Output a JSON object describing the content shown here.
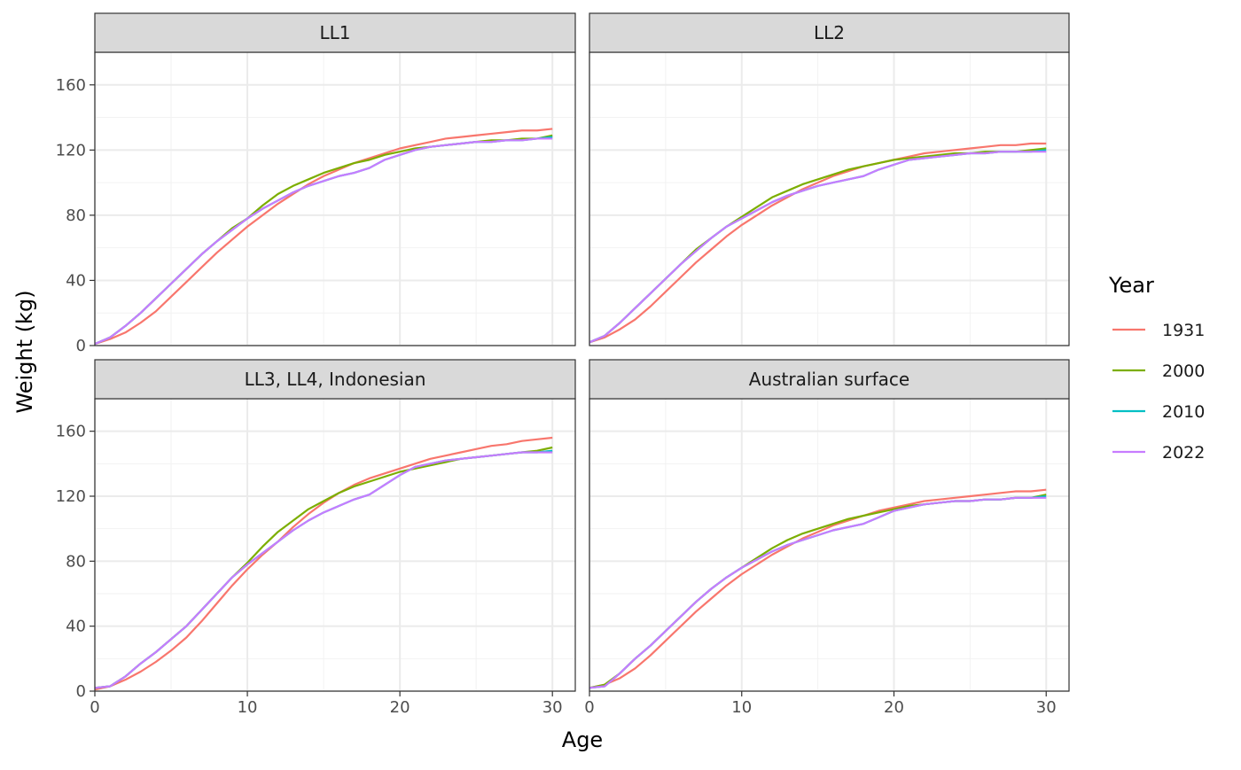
{
  "chart_data": {
    "type": "line",
    "layout": "facet-grid-2x2",
    "xlabel": "Age",
    "ylabel": "Weight (kg)",
    "xlim": [
      0,
      31.5
    ],
    "ylim": [
      0,
      180
    ],
    "x_ticks": [
      0,
      10,
      20,
      30
    ],
    "y_ticks": [
      0,
      40,
      80,
      120,
      160
    ],
    "grid": true,
    "legend": {
      "title": "Year",
      "placement": "right",
      "entries": [
        {
          "name": "1931",
          "color": "#F8766D"
        },
        {
          "name": "2000",
          "color": "#7CAE00"
        },
        {
          "name": "2010",
          "color": "#00BFC4"
        },
        {
          "name": "2022",
          "color": "#C77CFF"
        }
      ]
    },
    "x": [
      0,
      1,
      2,
      3,
      4,
      5,
      6,
      7,
      8,
      9,
      10,
      11,
      12,
      13,
      14,
      15,
      16,
      17,
      18,
      19,
      20,
      21,
      22,
      23,
      24,
      25,
      26,
      27,
      28,
      29,
      30
    ],
    "panels": [
      {
        "title": "LL1",
        "series": [
          {
            "name": "1931",
            "values": [
              1,
              4,
              8,
              14,
              21,
              30,
              39,
              48,
              57,
              65,
              73,
              80,
              87,
              93,
              99,
              104,
              108,
              112,
              115,
              118,
              121,
              123,
              125,
              127,
              128,
              129,
              130,
              131,
              132,
              132,
              133
            ]
          },
          {
            "name": "2000",
            "values": [
              1,
              5,
              12,
              20,
              29,
              38,
              47,
              56,
              64,
              72,
              78,
              86,
              93,
              98,
              102,
              106,
              109,
              112,
              114,
              117,
              119,
              121,
              122,
              123,
              124,
              125,
              126,
              126,
              127,
              127,
              129
            ]
          },
          {
            "name": "2010",
            "values": [
              1,
              5,
              12,
              20,
              29,
              38,
              47,
              56,
              64,
              71,
              78,
              84,
              89,
              94,
              98,
              101,
              104,
              106,
              109,
              114,
              117,
              120,
              122,
              123,
              124,
              125,
              125,
              126,
              126,
              127,
              128
            ]
          },
          {
            "name": "2022",
            "values": [
              1,
              5,
              12,
              20,
              29,
              38,
              47,
              56,
              64,
              71,
              78,
              84,
              89,
              94,
              98,
              101,
              104,
              106,
              109,
              114,
              117,
              120,
              122,
              123,
              124,
              125,
              125,
              126,
              126,
              127,
              127
            ]
          }
        ]
      },
      {
        "title": "LL2",
        "series": [
          {
            "name": "1931",
            "values": [
              2,
              5,
              10,
              16,
              24,
              33,
              42,
              51,
              59,
              67,
              74,
              80,
              86,
              91,
              96,
              100,
              104,
              107,
              110,
              112,
              114,
              116,
              118,
              119,
              120,
              121,
              122,
              123,
              123,
              124,
              124
            ]
          },
          {
            "name": "2000",
            "values": [
              2,
              6,
              14,
              23,
              32,
              41,
              50,
              59,
              66,
              73,
              79,
              85,
              91,
              95,
              99,
              102,
              105,
              108,
              110,
              112,
              114,
              115,
              116,
              117,
              118,
              118,
              119,
              119,
              119,
              120,
              121
            ]
          },
          {
            "name": "2010",
            "values": [
              2,
              6,
              14,
              23,
              32,
              41,
              50,
              58,
              66,
              73,
              78,
              83,
              88,
              92,
              95,
              98,
              100,
              102,
              104,
              108,
              111,
              114,
              115,
              116,
              117,
              118,
              118,
              119,
              119,
              119,
              120
            ]
          },
          {
            "name": "2022",
            "values": [
              2,
              6,
              14,
              23,
              32,
              41,
              50,
              58,
              66,
              73,
              78,
              83,
              88,
              92,
              95,
              98,
              100,
              102,
              104,
              108,
              111,
              114,
              115,
              116,
              117,
              118,
              118,
              119,
              119,
              119,
              119
            ]
          }
        ]
      },
      {
        "title": "LL3, LL4, Indonesian",
        "series": [
          {
            "name": "1931",
            "values": [
              1,
              3,
              7,
              12,
              18,
              25,
              33,
              43,
              54,
              65,
              75,
              84,
              92,
              101,
              109,
              116,
              122,
              127,
              131,
              134,
              137,
              140,
              143,
              145,
              147,
              149,
              151,
              152,
              154,
              155,
              156
            ]
          },
          {
            "name": "2000",
            "values": [
              2,
              3,
              9,
              17,
              24,
              32,
              40,
              50,
              60,
              70,
              79,
              89,
              98,
              105,
              112,
              117,
              122,
              126,
              129,
              132,
              135,
              137,
              139,
              141,
              143,
              144,
              145,
              146,
              147,
              148,
              150
            ]
          },
          {
            "name": "2010",
            "values": [
              2,
              3,
              9,
              17,
              24,
              32,
              40,
              50,
              60,
              70,
              78,
              85,
              92,
              99,
              105,
              110,
              114,
              118,
              121,
              127,
              133,
              138,
              140,
              142,
              143,
              144,
              145,
              146,
              147,
              147,
              148
            ]
          },
          {
            "name": "2022",
            "values": [
              2,
              3,
              9,
              17,
              24,
              32,
              40,
              50,
              60,
              70,
              78,
              85,
              92,
              99,
              105,
              110,
              114,
              118,
              121,
              127,
              133,
              138,
              140,
              142,
              143,
              144,
              145,
              146,
              147,
              147,
              147
            ]
          }
        ]
      },
      {
        "title": "Australian surface",
        "series": [
          {
            "name": "1931",
            "values": [
              2,
              4,
              8,
              14,
              22,
              31,
              40,
              49,
              57,
              65,
              72,
              78,
              84,
              89,
              94,
              98,
              102,
              105,
              108,
              111,
              113,
              115,
              117,
              118,
              119,
              120,
              121,
              122,
              123,
              123,
              124
            ]
          },
          {
            "name": "2000",
            "values": [
              2,
              4,
              11,
              20,
              28,
              37,
              46,
              55,
              63,
              70,
              76,
              82,
              88,
              93,
              97,
              100,
              103,
              106,
              108,
              110,
              112,
              114,
              115,
              116,
              117,
              117,
              118,
              118,
              119,
              119,
              121
            ]
          },
          {
            "name": "2010",
            "values": [
              2,
              3,
              11,
              20,
              28,
              37,
              46,
              55,
              63,
              70,
              76,
              81,
              86,
              90,
              93,
              96,
              99,
              101,
              103,
              107,
              111,
              113,
              115,
              116,
              117,
              117,
              118,
              118,
              119,
              119,
              120
            ]
          },
          {
            "name": "2022",
            "values": [
              2,
              3,
              11,
              20,
              28,
              37,
              46,
              55,
              63,
              70,
              76,
              81,
              86,
              90,
              93,
              96,
              99,
              101,
              103,
              107,
              111,
              113,
              115,
              116,
              117,
              117,
              118,
              118,
              119,
              119,
              119
            ]
          }
        ]
      }
    ]
  }
}
